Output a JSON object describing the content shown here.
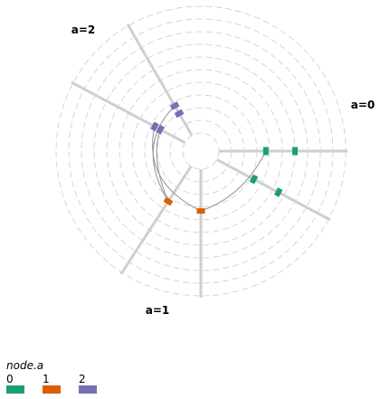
{
  "chart_data": {
    "type": "hive",
    "legend": {
      "title": "node.a",
      "entries": [
        {
          "label": "0",
          "color": "#1b9e77"
        },
        {
          "label": "1",
          "color": "#d95f02"
        },
        {
          "label": "2",
          "color": "#7570b3"
        }
      ]
    },
    "axes": [
      {
        "id": "a0",
        "label": "a=0",
        "color": "#1b9e77",
        "angles_deg": [
          0,
          28
        ]
      },
      {
        "id": "a1",
        "label": "a=1",
        "color": "#d95f02",
        "angles_deg": [
          90,
          123
        ]
      },
      {
        "id": "a2",
        "label": "a=2",
        "color": "#7570b3",
        "angles_deg": [
          208,
          240
        ]
      }
    ],
    "nodes": [
      {
        "axis": "a0",
        "angle_deg": 0,
        "r": 0.37
      },
      {
        "axis": "a0",
        "angle_deg": 0,
        "r": 0.6
      },
      {
        "axis": "a0",
        "angle_deg": 28,
        "r": 0.33
      },
      {
        "axis": "a0",
        "angle_deg": 28,
        "r": 0.55
      },
      {
        "axis": "a1",
        "angle_deg": 90,
        "r": 0.33
      },
      {
        "axis": "a1",
        "angle_deg": 123,
        "r": 0.33
      },
      {
        "axis": "a2",
        "angle_deg": 208,
        "r": 0.27
      },
      {
        "axis": "a2",
        "angle_deg": 208,
        "r": 0.22
      },
      {
        "axis": "a2",
        "angle_deg": 240,
        "r": 0.27
      },
      {
        "axis": "a2",
        "angle_deg": 240,
        "r": 0.2
      }
    ],
    "edges": [
      {
        "from": 0,
        "to": 4
      },
      {
        "from": 6,
        "to": 4
      },
      {
        "from": 7,
        "to": 5
      },
      {
        "from": 8,
        "to": 5
      }
    ],
    "grid": true
  }
}
